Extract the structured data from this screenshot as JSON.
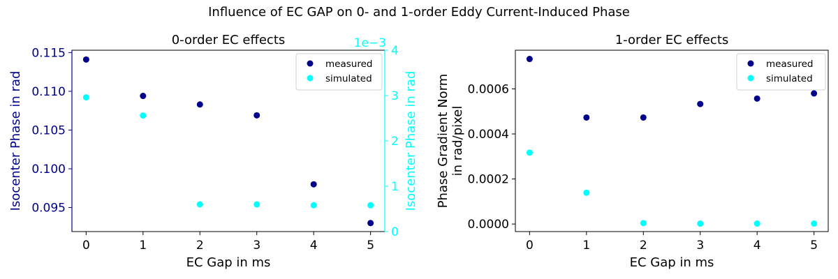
{
  "suptitle": "Influence of EC GAP on 0- and 1-order Eddy Current-Induced Phase",
  "colors": {
    "measured": "#00008b",
    "simulated": "#00ffff",
    "axis": "#000000"
  },
  "chart_data": [
    {
      "type": "scatter",
      "title": "0-order EC effects",
      "xlabel": "EC Gap in ms",
      "ylabel": "Isocenter Phase in rad",
      "ylabel_right": "Isocenter Phase in rad",
      "right_axis_offset_label": "1e−3",
      "x_ticks": [
        "0",
        "1",
        "2",
        "3",
        "4",
        "5"
      ],
      "y_ticks": [
        "0.095",
        "0.100",
        "0.105",
        "0.110",
        "0.115"
      ],
      "y_right_ticks": [
        "0",
        "1",
        "2",
        "3",
        "4"
      ],
      "xlim": [
        -0.25,
        5.25
      ],
      "ylim": [
        0.0919,
        0.1153
      ],
      "ylim_right": [
        0,
        0.004
      ],
      "legend_position": "top-right",
      "legend": [
        "measured",
        "simulated"
      ],
      "series": [
        {
          "name": "measured",
          "axis": "left",
          "x": [
            0,
            1,
            2,
            3,
            4,
            5
          ],
          "y": [
            0.1141,
            0.1094,
            0.1083,
            0.1069,
            0.098,
            0.093
          ]
        },
        {
          "name": "simulated",
          "axis": "right",
          "x": [
            0,
            1,
            2,
            3,
            4,
            5
          ],
          "y": [
            0.00296,
            0.00256,
            0.0006,
            0.0006,
            0.00058,
            0.00058
          ]
        }
      ]
    },
    {
      "type": "scatter",
      "title": "1-order EC effects",
      "xlabel": "EC Gap in ms",
      "ylabel": "Phase Gradient Norm\nin rad/pixel",
      "x_ticks": [
        "0",
        "1",
        "2",
        "3",
        "4",
        "5"
      ],
      "y_ticks": [
        "0.0000",
        "0.0002",
        "0.0004",
        "0.0006"
      ],
      "xlim": [
        -0.25,
        5.25
      ],
      "ylim": [
        -3.36e-05,
        0.0007718
      ],
      "legend_position": "top-right",
      "legend": [
        "measured",
        "simulated"
      ],
      "series": [
        {
          "name": "measured",
          "x": [
            0,
            1,
            2,
            3,
            4,
            5
          ],
          "y": [
            0.000733,
            0.000473,
            0.000473,
            0.000533,
            0.000557,
            0.00058
          ]
        },
        {
          "name": "simulated",
          "x": [
            0,
            1,
            2,
            3,
            4,
            5
          ],
          "y": [
            0.000317,
            0.000139,
            4e-06,
            2e-06,
            2e-06,
            2e-06
          ]
        }
      ]
    }
  ]
}
